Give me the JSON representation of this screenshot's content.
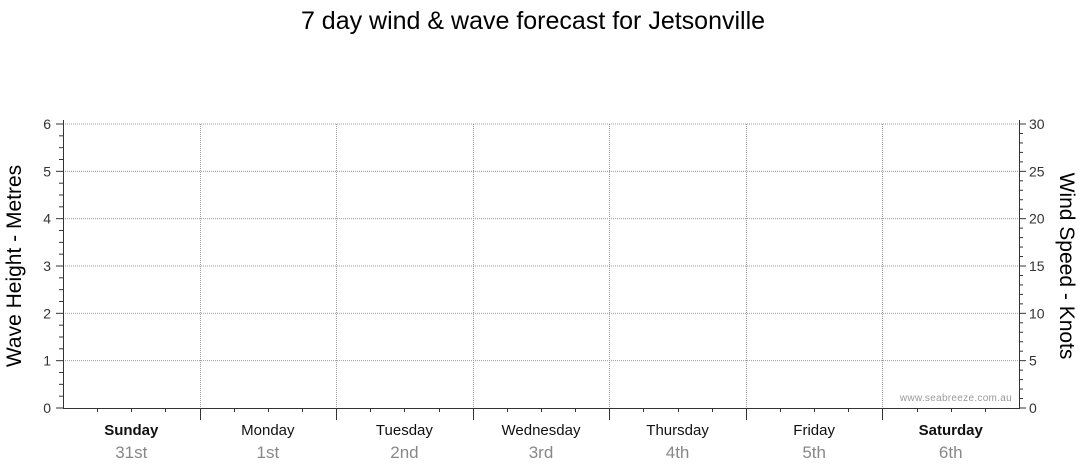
{
  "chart_data": {
    "type": "line",
    "title": "7 day wind & wave forecast for Jetsonville",
    "left_axis": {
      "label": "Wave Height - Metres",
      "ylim": [
        0,
        6
      ],
      "ticks": [
        "0",
        "1",
        "2",
        "3",
        "4",
        "5",
        "6"
      ]
    },
    "right_axis": {
      "label": "Wind Speed - Knots",
      "ylim": [
        0,
        30
      ],
      "ticks": [
        "0",
        "5",
        "10",
        "15",
        "20",
        "25",
        "30"
      ]
    },
    "categories": [
      {
        "day": "Sunday",
        "date": "31st",
        "bold": true
      },
      {
        "day": "Monday",
        "date": "1st",
        "bold": false
      },
      {
        "day": "Tuesday",
        "date": "2nd",
        "bold": false
      },
      {
        "day": "Wednesday",
        "date": "3rd",
        "bold": false
      },
      {
        "day": "Thursday",
        "date": "4th",
        "bold": false
      },
      {
        "day": "Friday",
        "date": "5th",
        "bold": false
      },
      {
        "day": "Saturday",
        "date": "6th",
        "bold": true
      }
    ],
    "series": [],
    "grid": true,
    "watermark": "www.seabreeze.com.au"
  }
}
